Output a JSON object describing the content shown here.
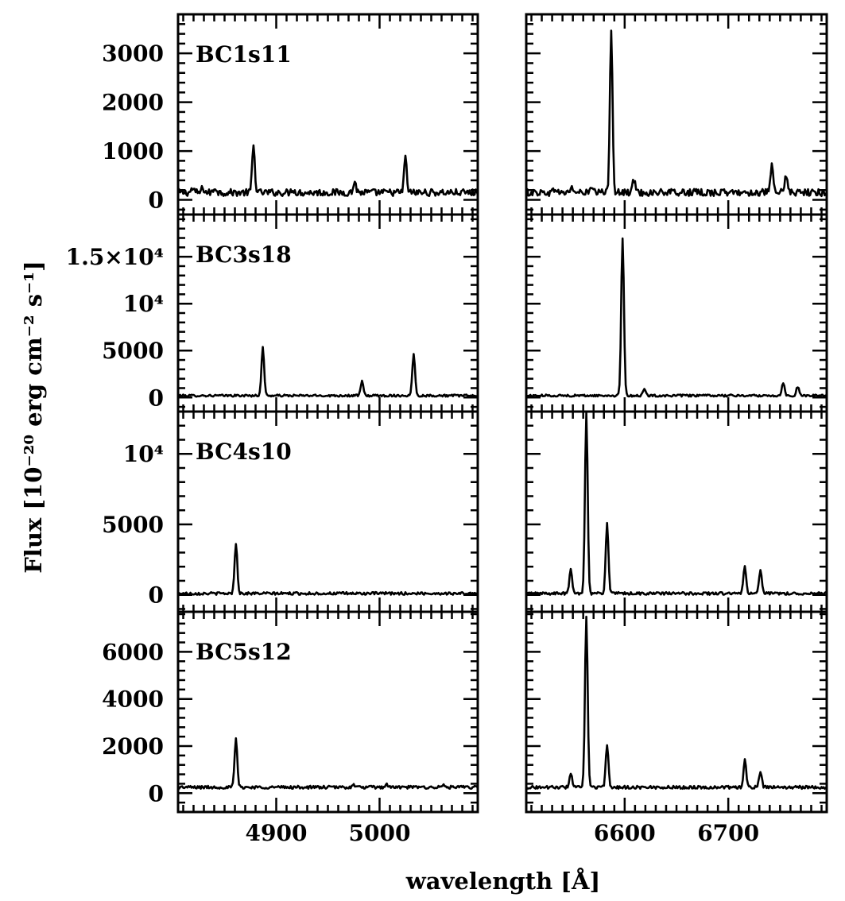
{
  "chart_data": {
    "type": "line",
    "xlabel": "wavelength [Å]",
    "ylabel": "Flux [10⁻²⁰ erg cm⁻² s⁻¹]",
    "columns": [
      {
        "xlim": [
          4805,
          5095
        ],
        "xticks": [
          4900,
          5000
        ],
        "xtick_labels": [
          "4900",
          "5000"
        ]
      },
      {
        "xlim": [
          6505,
          6795
        ],
        "xticks": [
          6600,
          6700
        ],
        "xtick_labels": [
          "6600",
          "6700"
        ]
      }
    ],
    "rows": [
      {
        "name": "BC1s11",
        "ylim": [
          -300,
          3800
        ],
        "yticks": [
          0,
          1000,
          2000,
          3000
        ],
        "ytick_labels": [
          "0",
          "1000",
          "2000",
          "3000"
        ],
        "continuum": 150,
        "noise": 45,
        "lines": [
          {
            "x": 4819,
            "peak": 80
          },
          {
            "x": 4829,
            "peak": 90
          },
          {
            "x": 4841,
            "peak": 110
          },
          {
            "x": 4878,
            "peak": 950
          },
          {
            "x": 4916,
            "peak": 80
          },
          {
            "x": 4976,
            "peak": 220
          },
          {
            "x": 5025,
            "peak": 710
          },
          {
            "x": 6533,
            "peak": 90
          },
          {
            "x": 6549,
            "peak": 110
          },
          {
            "x": 6568,
            "peak": 90
          },
          {
            "x": 6587,
            "peak": 3300
          },
          {
            "x": 6609,
            "peak": 270
          },
          {
            "x": 6742,
            "peak": 530
          },
          {
            "x": 6756,
            "peak": 370
          }
        ]
      },
      {
        "name": "BC3s18",
        "ylim": [
          -1500,
          19500
        ],
        "yticks": [
          0,
          5000,
          10000,
          15000
        ],
        "ytick_labels": [
          "0",
          "5000",
          "10⁴",
          "1.5×10⁴"
        ],
        "continuum": 200,
        "noise": 70,
        "lines": [
          {
            "x": 4887,
            "peak": 5100
          },
          {
            "x": 4983,
            "peak": 1500
          },
          {
            "x": 5033,
            "peak": 4500
          },
          {
            "x": 6598,
            "peak": 16800
          },
          {
            "x": 6619,
            "peak": 650
          },
          {
            "x": 6753,
            "peak": 1400
          },
          {
            "x": 6767,
            "peak": 950
          }
        ]
      },
      {
        "name": "BC4s10",
        "ylim": [
          -1200,
          13000
        ],
        "yticks": [
          0,
          5000,
          10000
        ],
        "ytick_labels": [
          "0",
          "5000",
          "10⁴"
        ],
        "continuum": 100,
        "noise": 60,
        "lines": [
          {
            "x": 4861,
            "peak": 3600
          },
          {
            "x": 6548,
            "peak": 1700
          },
          {
            "x": 6563,
            "peak": 12800
          },
          {
            "x": 6583,
            "peak": 5000
          },
          {
            "x": 6716,
            "peak": 1950
          },
          {
            "x": 6731,
            "peak": 1650
          }
        ]
      },
      {
        "name": "BC5s12",
        "ylim": [
          -800,
          7700
        ],
        "yticks": [
          0,
          2000,
          4000,
          6000
        ],
        "ytick_labels": [
          "0",
          "2000",
          "4000",
          "6000"
        ],
        "continuum": 250,
        "noise": 40,
        "lines": [
          {
            "x": 4861,
            "peak": 2050
          },
          {
            "x": 4975,
            "peak": 100
          },
          {
            "x": 5007,
            "peak": 120
          },
          {
            "x": 5062,
            "peak": 90
          },
          {
            "x": 6548,
            "peak": 600
          },
          {
            "x": 6563,
            "peak": 7200
          },
          {
            "x": 6583,
            "peak": 1750
          },
          {
            "x": 6716,
            "peak": 1150
          },
          {
            "x": 6731,
            "peak": 700
          }
        ]
      }
    ]
  }
}
